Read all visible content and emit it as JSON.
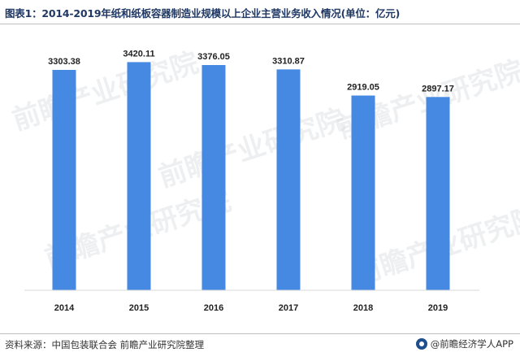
{
  "header": {
    "title": "图表1：2014-2019年纸和纸板容器制造业规模以上企业主营业务收入情况(单位：亿元)"
  },
  "footer": {
    "source": "资料来源：中国包装联合会 前瞻产业研究院整理",
    "brand": "@前瞻经济学人APP"
  },
  "watermark": {
    "text": "前瞻产业研究院"
  },
  "colors": {
    "bar": "#4589e3",
    "title": "#1f3864"
  },
  "chart_data": {
    "type": "bar",
    "title": "图表1：2014-2019年纸和纸板容器制造业规模以上企业主营业务收入情况(单位：亿元)",
    "categories": [
      "2014",
      "2015",
      "2016",
      "2017",
      "2018",
      "2019"
    ],
    "values": [
      3303.38,
      3420.11,
      3376.05,
      3310.87,
      2919.05,
      2897.17
    ],
    "labels": [
      "3303.38",
      "3420.11",
      "3376.05",
      "3310.87",
      "2919.05",
      "2897.17"
    ],
    "xlabel": "",
    "ylabel": "",
    "ylim": [
      0,
      3620
    ],
    "grid": false,
    "legend": "none"
  }
}
